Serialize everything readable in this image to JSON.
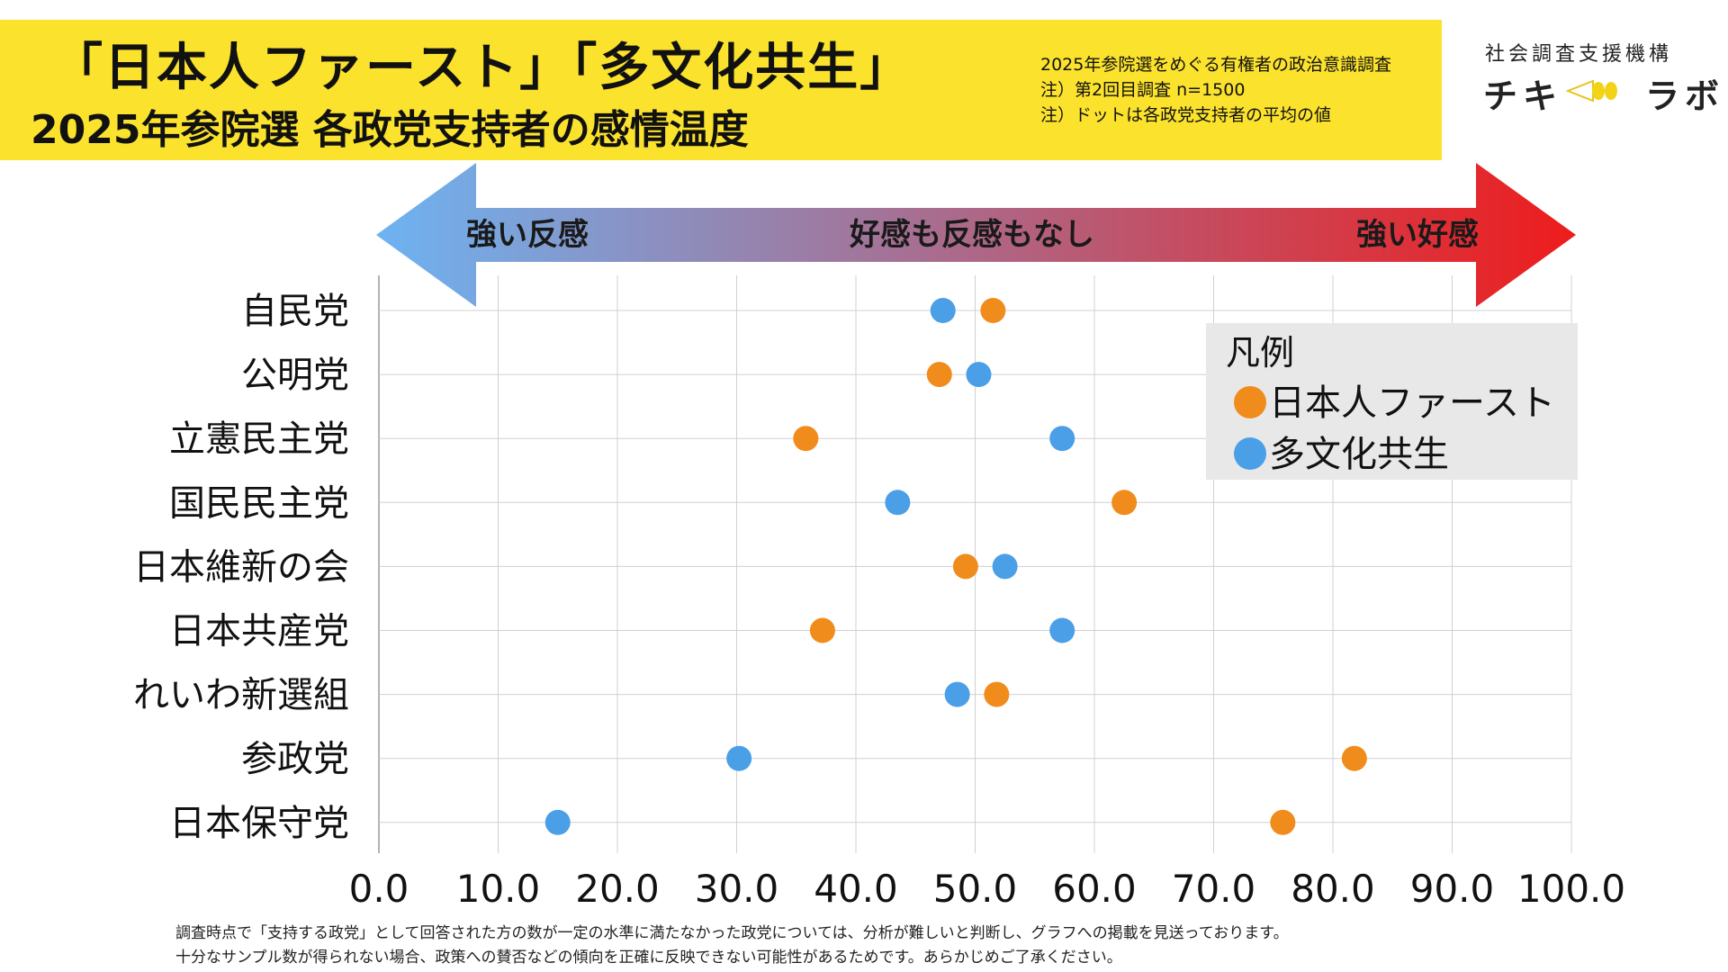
{
  "header": {
    "title_line1": "「日本人ファースト」「多文化共生」",
    "title_line2": "2025年参院選 各政党支持者の感情温度",
    "notes": [
      "2025年参院選をめぐる有権者の政治意識調査",
      "注）第2回目調査 n=1500",
      "注）ドットは各政党支持者の平均の値"
    ],
    "banner_color": "#FBE22D"
  },
  "logo": {
    "org": "社会調査支援機構",
    "name_left": "チキ",
    "name_right": "ラボ",
    "mark_icon": "light-beam-icon"
  },
  "scale_arrow": {
    "left_label": "強い反感",
    "center_label": "好感も反感もなし",
    "right_label": "強い好感",
    "left_color": "#6DB3F2",
    "right_color": "#EE1C1C"
  },
  "legend": {
    "title": "凡例"
  },
  "footnotes": [
    "調査時点で「支持する政党」として回答された方の数が一定の水準に満たなかった政党については、分析が難しいと判断し、グラフへの掲載を見送っております。",
    "十分なサンプル数が得られない場合、政策への賛否などの傾向を正確に反映できない可能性があるためです。あらかじめご了承ください。"
  ],
  "chart_data": {
    "type": "scatter",
    "categories": [
      "自民党",
      "公明党",
      "立憲民主党",
      "国民民主党",
      "日本維新の会",
      "日本共産党",
      "れいわ新選組",
      "参政党",
      "日本保守党"
    ],
    "series": [
      {
        "name": "日本人ファースト",
        "color": "#F08C1C",
        "values": [
          51.5,
          47.0,
          35.8,
          62.5,
          49.2,
          37.2,
          51.8,
          81.8,
          75.8
        ]
      },
      {
        "name": "多文化共生",
        "color": "#4A9FE6",
        "values": [
          47.3,
          50.3,
          57.3,
          43.5,
          52.5,
          57.3,
          48.5,
          30.2,
          15.0
        ]
      }
    ],
    "xlim": [
      0,
      100
    ],
    "xticks": [
      "0.0",
      "10.0",
      "20.0",
      "30.0",
      "40.0",
      "50.0",
      "60.0",
      "70.0",
      "80.0",
      "90.0",
      "100.0"
    ],
    "grid": true,
    "legend_position": "top-right"
  }
}
